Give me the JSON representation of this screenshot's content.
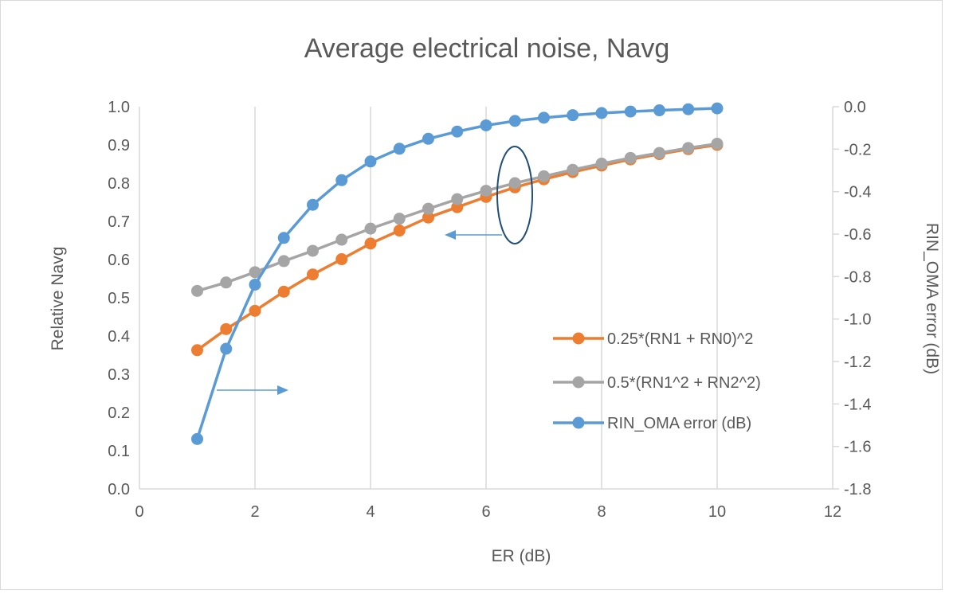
{
  "chart_data": {
    "type": "line",
    "title": "Average electrical noise, Navg",
    "xlabel": "ER (dB)",
    "ylabel": "Relative Navg",
    "y2label": "RIN_OMA error (dB)",
    "xlim": [
      0,
      12
    ],
    "ylim": [
      0,
      1
    ],
    "y2lim": [
      -1.8,
      0
    ],
    "x_ticks": [
      "0",
      "2",
      "4",
      "6",
      "8",
      "10",
      "12"
    ],
    "y_ticks": [
      "0.0",
      "0.1",
      "0.2",
      "0.3",
      "0.4",
      "0.5",
      "0.6",
      "0.7",
      "0.8",
      "0.9",
      "1.0"
    ],
    "y2_ticks": [
      "0.0",
      "-0.2",
      "-0.4",
      "-0.6",
      "-0.8",
      "-1.0",
      "-1.2",
      "-1.4",
      "-1.6",
      "-1.8"
    ],
    "grid": "vertical",
    "legend_position": "right",
    "x": [
      1,
      1.5,
      2,
      2.5,
      3,
      3.5,
      4,
      4.5,
      5,
      5.5,
      6,
      6.5,
      7,
      7.5,
      8,
      8.5,
      9,
      9.5,
      10
    ],
    "series": [
      {
        "name": "0.25*(RN1 + RN0)^2",
        "axis": "left",
        "color": "#ED7D31",
        "values": [
          0.363,
          0.418,
          0.466,
          0.516,
          0.561,
          0.601,
          0.642,
          0.676,
          0.71,
          0.737,
          0.764,
          0.789,
          0.81,
          0.829,
          0.846,
          0.862,
          0.876,
          0.889,
          0.9
        ]
      },
      {
        "name": "0.5*(RN1^2 + RN2^2)",
        "axis": "left",
        "color": "#A5A5A5",
        "values": [
          0.518,
          0.54,
          0.567,
          0.596,
          0.623,
          0.652,
          0.681,
          0.707,
          0.733,
          0.758,
          0.78,
          0.8,
          0.818,
          0.835,
          0.851,
          0.866,
          0.879,
          0.892,
          0.903
        ]
      },
      {
        "name": "RIN_OMA error (dB)",
        "axis": "right",
        "color": "#5B9BD5",
        "values": [
          -1.565,
          -1.14,
          -0.838,
          -0.618,
          -0.462,
          -0.346,
          -0.258,
          -0.198,
          -0.151,
          -0.117,
          -0.088,
          -0.067,
          -0.052,
          -0.04,
          -0.03,
          -0.023,
          -0.017,
          -0.012,
          -0.008
        ]
      }
    ]
  }
}
